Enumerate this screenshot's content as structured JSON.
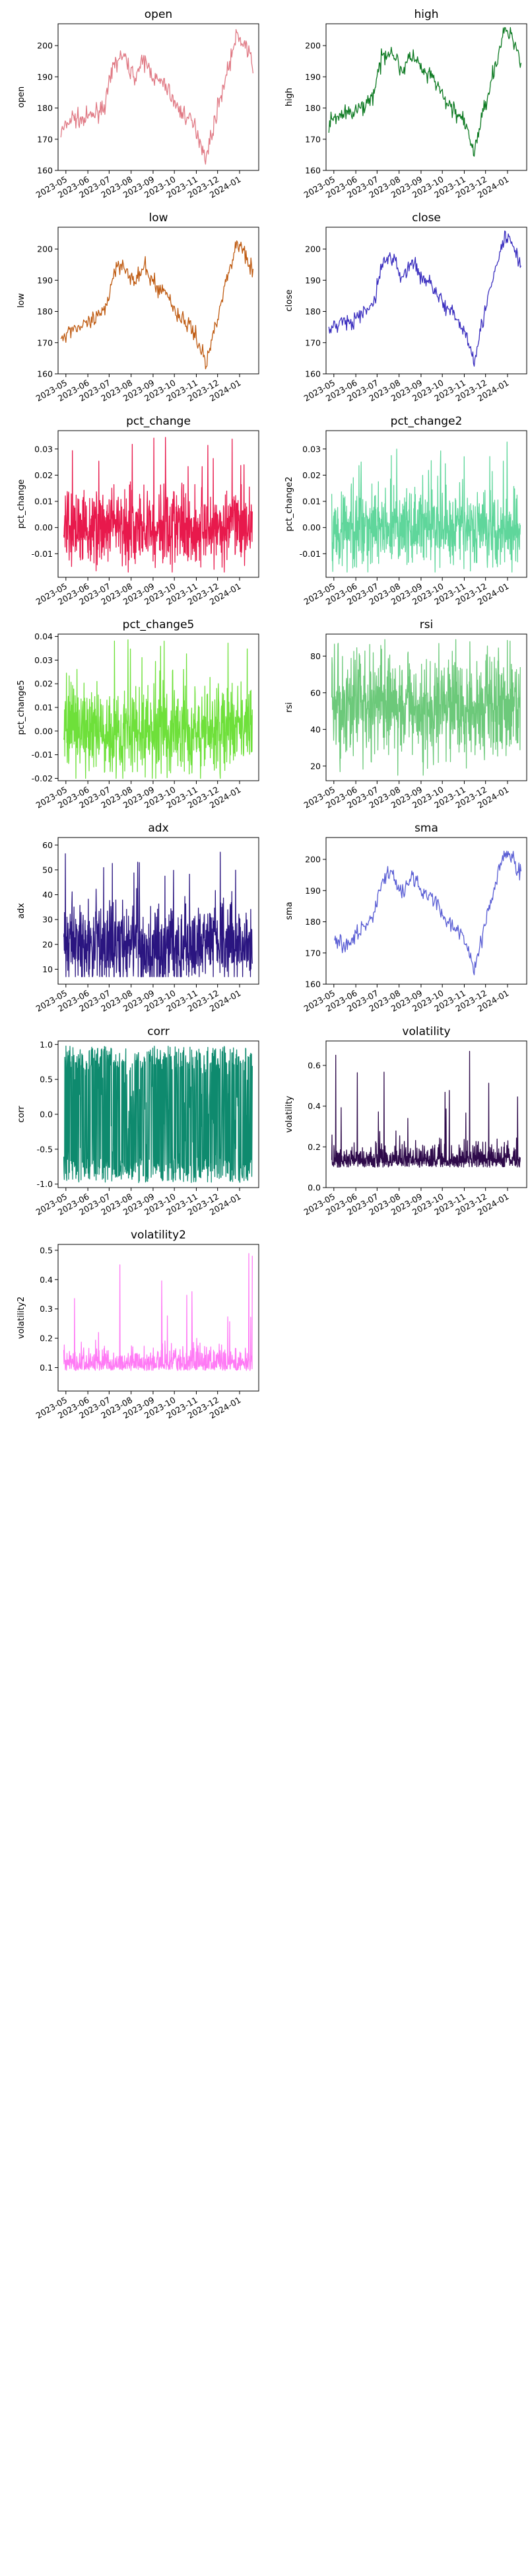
{
  "chart_data": [
    {
      "type": "line",
      "title": "open",
      "xlabel": "",
      "ylabel": "open",
      "color": "#e07a85",
      "xlim": [
        "2023-04-20",
        "2024-01-28"
      ],
      "ylim": [
        160,
        207
      ],
      "yticks": [
        160,
        170,
        180,
        190,
        200
      ],
      "xticks": [
        "2023-05",
        "2023-06",
        "2023-07",
        "2023-08",
        "2023-09",
        "2023-10",
        "2023-11",
        "2023-12",
        "2024-01"
      ],
      "grid": false,
      "legend": "none",
      "series": [
        {
          "kind": "price",
          "x": [
            "2023-04-24",
            "2023-05-10",
            "2023-05-25",
            "2023-06-10",
            "2023-06-25",
            "2023-07-08",
            "2023-07-20",
            "2023-08-05",
            "2023-08-20",
            "2023-09-05",
            "2023-09-20",
            "2023-10-05",
            "2023-10-20",
            "2023-11-01",
            "2023-11-15",
            "2023-12-01",
            "2023-12-15",
            "2023-12-28",
            "2024-01-10",
            "2024-01-20"
          ],
          "y": [
            172,
            177,
            176,
            178,
            181,
            194,
            197,
            190,
            195,
            189,
            187,
            180,
            177,
            173,
            164,
            180,
            192,
            203,
            200,
            193
          ]
        }
      ]
    },
    {
      "type": "line",
      "title": "high",
      "xlabel": "",
      "ylabel": "high",
      "color": "#0d7a22",
      "xlim": [
        "2023-04-20",
        "2024-01-28"
      ],
      "ylim": [
        160,
        207
      ],
      "yticks": [
        160,
        170,
        180,
        190,
        200
      ],
      "xticks": [
        "2023-05",
        "2023-06",
        "2023-07",
        "2023-08",
        "2023-09",
        "2023-10",
        "2023-11",
        "2023-12",
        "2024-01"
      ],
      "grid": false,
      "legend": "none",
      "series": [
        {
          "kind": "price",
          "x": [
            "2023-04-24",
            "2023-05-10",
            "2023-05-25",
            "2023-06-10",
            "2023-06-25",
            "2023-07-08",
            "2023-07-20",
            "2023-08-05",
            "2023-08-20",
            "2023-09-05",
            "2023-09-20",
            "2023-10-05",
            "2023-10-20",
            "2023-11-01",
            "2023-11-15",
            "2023-12-01",
            "2023-12-15",
            "2023-12-28",
            "2024-01-10",
            "2024-01-20"
          ],
          "y": [
            175,
            178,
            178,
            180,
            184,
            196,
            199,
            192,
            197,
            191,
            189,
            182,
            179,
            175,
            166,
            182,
            194,
            205,
            202,
            195
          ]
        }
      ]
    },
    {
      "type": "line",
      "title": "low",
      "xlabel": "",
      "ylabel": "low",
      "color": "#bf5b12",
      "xlim": [
        "2023-04-20",
        "2024-01-28"
      ],
      "ylim": [
        160,
        207
      ],
      "yticks": [
        160,
        170,
        180,
        190,
        200
      ],
      "xticks": [
        "2023-05",
        "2023-06",
        "2023-07",
        "2023-08",
        "2023-09",
        "2023-10",
        "2023-11",
        "2023-12",
        "2024-01"
      ],
      "grid": false,
      "legend": "none",
      "series": [
        {
          "kind": "price",
          "x": [
            "2023-04-24",
            "2023-05-10",
            "2023-05-25",
            "2023-06-10",
            "2023-06-25",
            "2023-07-08",
            "2023-07-20",
            "2023-08-05",
            "2023-08-20",
            "2023-09-05",
            "2023-09-20",
            "2023-10-05",
            "2023-10-20",
            "2023-11-01",
            "2023-11-15",
            "2023-12-01",
            "2023-12-15",
            "2023-12-28",
            "2024-01-10",
            "2024-01-20"
          ],
          "y": [
            171,
            175,
            175,
            177,
            180,
            193,
            196,
            189,
            194,
            188,
            186,
            179,
            176,
            172,
            163,
            179,
            191,
            202,
            199,
            192
          ]
        }
      ]
    },
    {
      "type": "line",
      "title": "close",
      "xlabel": "",
      "ylabel": "close",
      "color": "#3b2fbf",
      "xlim": [
        "2023-04-20",
        "2024-01-28"
      ],
      "ylim": [
        160,
        207
      ],
      "yticks": [
        160,
        170,
        180,
        190,
        200
      ],
      "xticks": [
        "2023-05",
        "2023-06",
        "2023-07",
        "2023-08",
        "2023-09",
        "2023-10",
        "2023-11",
        "2023-12",
        "2024-01"
      ],
      "grid": false,
      "legend": "none",
      "series": [
        {
          "kind": "price",
          "x": [
            "2023-04-24",
            "2023-05-10",
            "2023-05-25",
            "2023-06-10",
            "2023-06-25",
            "2023-07-08",
            "2023-07-20",
            "2023-08-05",
            "2023-08-20",
            "2023-09-05",
            "2023-09-20",
            "2023-10-05",
            "2023-10-20",
            "2023-11-01",
            "2023-11-15",
            "2023-12-01",
            "2023-12-15",
            "2023-12-28",
            "2024-01-10",
            "2024-01-20"
          ],
          "y": [
            173,
            177,
            176,
            179,
            182,
            195,
            198,
            191,
            196,
            190,
            188,
            181,
            178,
            174,
            165,
            181,
            193,
            204,
            201,
            194
          ]
        }
      ]
    },
    {
      "type": "line",
      "title": "pct_change",
      "xlabel": "",
      "ylabel": "pct_change",
      "color": "#e8194c",
      "xlim": [
        "2023-04-20",
        "2024-01-28"
      ],
      "ylim": [
        -0.019,
        0.037
      ],
      "yticks": [
        -0.01,
        0.0,
        0.01,
        0.02,
        0.03
      ],
      "xticks": [
        "2023-05",
        "2023-06",
        "2023-07",
        "2023-08",
        "2023-09",
        "2023-10",
        "2023-11",
        "2023-12",
        "2024-01"
      ],
      "grid": false,
      "legend": "none",
      "series": [
        {
          "kind": "noise",
          "center": 0.0,
          "spread": 0.007,
          "min": -0.017,
          "max": 0.035
        }
      ]
    },
    {
      "type": "line",
      "title": "pct_change2",
      "xlabel": "",
      "ylabel": "pct_change2",
      "color": "#5fd69b",
      "xlim": [
        "2023-04-20",
        "2024-01-28"
      ],
      "ylim": [
        -0.019,
        0.037
      ],
      "yticks": [
        -0.01,
        0.0,
        0.01,
        0.02,
        0.03
      ],
      "xticks": [
        "2023-05",
        "2023-06",
        "2023-07",
        "2023-08",
        "2023-09",
        "2023-10",
        "2023-11",
        "2023-12",
        "2024-01"
      ],
      "grid": false,
      "legend": "none",
      "series": [
        {
          "kind": "noise",
          "center": 0.0,
          "spread": 0.007,
          "min": -0.017,
          "max": 0.035
        }
      ]
    },
    {
      "type": "line",
      "title": "pct_change5",
      "xlabel": "",
      "ylabel": "pct_change5",
      "color": "#6ee03a",
      "xlim": [
        "2023-04-20",
        "2024-01-28"
      ],
      "ylim": [
        -0.021,
        0.041
      ],
      "yticks": [
        -0.02,
        -0.01,
        0.0,
        0.01,
        0.02,
        0.03,
        0.04
      ],
      "xticks": [
        "2023-05",
        "2023-06",
        "2023-07",
        "2023-08",
        "2023-09",
        "2023-10",
        "2023-11",
        "2023-12",
        "2024-01"
      ],
      "grid": false,
      "legend": "none",
      "series": [
        {
          "kind": "noise",
          "center": 0.0,
          "spread": 0.009,
          "min": -0.02,
          "max": 0.039
        }
      ]
    },
    {
      "type": "line",
      "title": "rsi",
      "xlabel": "",
      "ylabel": "rsi",
      "color": "#6cc97a",
      "xlim": [
        "2023-04-20",
        "2024-01-28"
      ],
      "ylim": [
        12,
        92
      ],
      "yticks": [
        20,
        40,
        60,
        80
      ],
      "xticks": [
        "2023-05",
        "2023-06",
        "2023-07",
        "2023-08",
        "2023-09",
        "2023-10",
        "2023-11",
        "2023-12",
        "2024-01"
      ],
      "grid": false,
      "legend": "none",
      "series": [
        {
          "kind": "noise",
          "center": 52,
          "spread": 14,
          "min": 15,
          "max": 89
        }
      ]
    },
    {
      "type": "line",
      "title": "adx",
      "xlabel": "",
      "ylabel": "adx",
      "color": "#2a1580",
      "xlim": [
        "2023-04-20",
        "2024-01-28"
      ],
      "ylim": [
        4,
        63
      ],
      "yticks": [
        10,
        20,
        30,
        40,
        50,
        60
      ],
      "xticks": [
        "2023-05",
        "2023-06",
        "2023-07",
        "2023-08",
        "2023-09",
        "2023-10",
        "2023-11",
        "2023-12",
        "2024-01"
      ],
      "grid": false,
      "legend": "none",
      "series": [
        {
          "kind": "noise",
          "center": 20,
          "spread": 9,
          "min": 7,
          "max": 60
        }
      ]
    },
    {
      "type": "line",
      "title": "sma",
      "xlabel": "",
      "ylabel": "sma",
      "color": "#5a5ed4",
      "xlim": [
        "2023-04-20",
        "2024-01-28"
      ],
      "ylim": [
        160,
        207
      ],
      "yticks": [
        160,
        170,
        180,
        190,
        200
      ],
      "xticks": [
        "2023-05",
        "2023-06",
        "2023-07",
        "2023-08",
        "2023-09",
        "2023-10",
        "2023-11",
        "2023-12",
        "2024-01"
      ],
      "grid": false,
      "legend": "none",
      "series": [
        {
          "kind": "price",
          "x": [
            "2023-05-02",
            "2023-05-15",
            "2023-05-28",
            "2023-06-10",
            "2023-06-25",
            "2023-07-08",
            "2023-07-20",
            "2023-08-05",
            "2023-08-20",
            "2023-09-05",
            "2023-09-20",
            "2023-10-05",
            "2023-10-20",
            "2023-11-01",
            "2023-11-15",
            "2023-12-01",
            "2023-12-15",
            "2023-12-28",
            "2024-01-10",
            "2024-01-20"
          ],
          "y": [
            175,
            172,
            175,
            178,
            181,
            193,
            196,
            190,
            194,
            189,
            187,
            181,
            178,
            174,
            165,
            180,
            192,
            202,
            200,
            195
          ]
        }
      ]
    },
    {
      "type": "line",
      "title": "corr",
      "xlabel": "",
      "ylabel": "corr",
      "color": "#0e8a6e",
      "xlim": [
        "2023-04-20",
        "2024-01-28"
      ],
      "ylim": [
        -1.05,
        1.05
      ],
      "yticks": [
        -1.0,
        -0.5,
        0.0,
        0.5,
        1.0
      ],
      "xticks": [
        "2023-05",
        "2023-06",
        "2023-07",
        "2023-08",
        "2023-09",
        "2023-10",
        "2023-11",
        "2023-12",
        "2024-01"
      ],
      "grid": false,
      "legend": "none",
      "series": [
        {
          "kind": "bipolar",
          "center": 0.0,
          "spread": 0.6,
          "min": -0.98,
          "max": 0.98
        }
      ]
    },
    {
      "type": "line",
      "title": "volatility",
      "xlabel": "",
      "ylabel": "volatility",
      "color": "#2e0a4a",
      "xlim": [
        "2023-04-20",
        "2024-01-28"
      ],
      "ylim": [
        0.0,
        0.72
      ],
      "yticks": [
        0.0,
        0.2,
        0.4,
        0.6
      ],
      "xticks": [
        "2023-05",
        "2023-06",
        "2023-07",
        "2023-08",
        "2023-09",
        "2023-10",
        "2023-11",
        "2023-12",
        "2024-01"
      ],
      "grid": false,
      "legend": "none",
      "series": [
        {
          "kind": "skew",
          "center": 0.1,
          "spread": 0.05,
          "min": 0.05,
          "max": 0.69
        }
      ]
    },
    {
      "type": "line",
      "title": "volatility2",
      "xlabel": "",
      "ylabel": "volatility2",
      "color": "#ff7af5",
      "xlim": [
        "2023-04-20",
        "2024-01-28"
      ],
      "ylim": [
        0.02,
        0.52
      ],
      "yticks": [
        0.1,
        0.2,
        0.3,
        0.4,
        0.5
      ],
      "xticks": [
        "2023-05",
        "2023-06",
        "2023-07",
        "2023-08",
        "2023-09",
        "2023-10",
        "2023-11",
        "2023-12",
        "2024-01"
      ],
      "grid": false,
      "legend": "none",
      "series": [
        {
          "kind": "skew",
          "center": 0.09,
          "spread": 0.035,
          "min": 0.05,
          "max": 0.5
        }
      ]
    }
  ]
}
